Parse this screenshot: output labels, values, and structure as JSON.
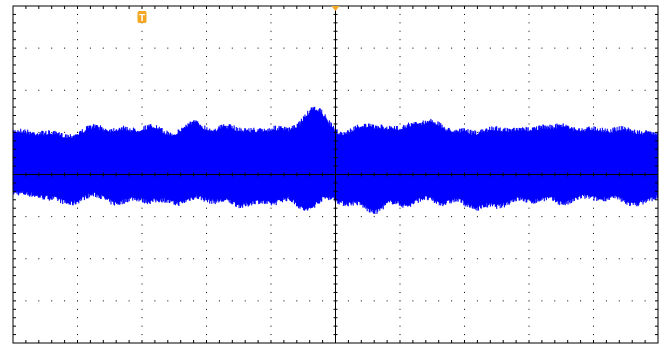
{
  "screen": {
    "background_color": "#ffffff",
    "frame_color": "#000000",
    "grid_color": "#000000",
    "trace_color": "#0000ff",
    "marker_color": "#f5a623"
  },
  "graticule": {
    "horizontal_divisions": 10,
    "vertical_divisions": 8,
    "minor_ticks_per_division": 5,
    "grid_style": "dotted"
  },
  "markers": {
    "trigger_position": {
      "icon": "trigger-t-marker-icon",
      "label": "T",
      "division": 2.0
    },
    "time_reference": {
      "icon": "triangle-down-marker-icon",
      "division": 5.0
    }
  },
  "waveform": {
    "description_shape": "amplitude-modulated noise burst",
    "baseline_division": 4.0,
    "typical_upper_division": 3.05,
    "typical_lower_division": 4.5,
    "upper_peak_divisions": [
      [
        0.1,
        2.9
      ],
      [
        0.55,
        2.95
      ],
      [
        1.25,
        2.8
      ],
      [
        1.7,
        2.85
      ],
      [
        2.15,
        2.8
      ],
      [
        2.8,
        2.7
      ],
      [
        3.3,
        2.8
      ],
      [
        3.7,
        2.9
      ],
      [
        4.1,
        2.85
      ],
      [
        4.55,
        2.75
      ],
      [
        4.75,
        2.55
      ],
      [
        5.4,
        2.8
      ],
      [
        5.75,
        2.85
      ],
      [
        6.15,
        2.8
      ],
      [
        6.5,
        2.7
      ],
      [
        6.95,
        2.9
      ],
      [
        7.45,
        2.85
      ],
      [
        7.85,
        2.9
      ],
      [
        8.2,
        2.85
      ],
      [
        8.55,
        2.8
      ],
      [
        9.0,
        2.85
      ],
      [
        9.45,
        2.85
      ],
      [
        9.9,
        2.95
      ]
    ],
    "lower_peak_divisions": [
      [
        0.5,
        4.6
      ],
      [
        0.9,
        4.75
      ],
      [
        1.6,
        4.75
      ],
      [
        2.1,
        4.7
      ],
      [
        2.55,
        4.75
      ],
      [
        3.1,
        4.7
      ],
      [
        3.55,
        4.8
      ],
      [
        4.0,
        4.75
      ],
      [
        4.55,
        4.9
      ],
      [
        5.15,
        4.75
      ],
      [
        5.6,
        4.95
      ],
      [
        6.1,
        4.8
      ],
      [
        6.65,
        4.75
      ],
      [
        7.15,
        4.85
      ],
      [
        7.55,
        4.8
      ],
      [
        8.05,
        4.7
      ],
      [
        8.55,
        4.75
      ],
      [
        9.1,
        4.65
      ],
      [
        9.6,
        4.75
      ],
      [
        9.9,
        4.6
      ]
    ]
  }
}
